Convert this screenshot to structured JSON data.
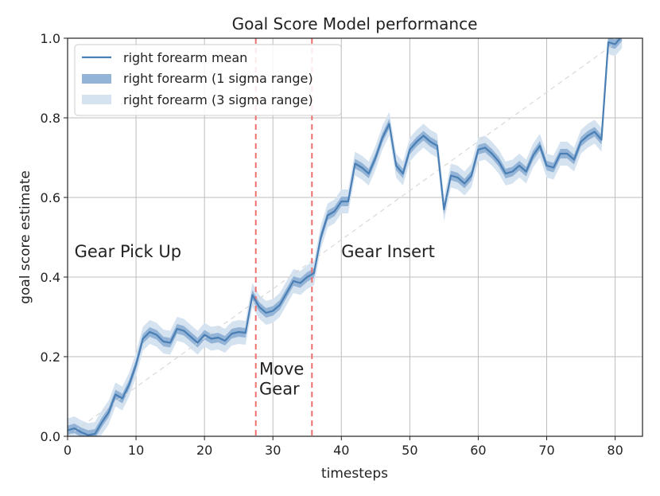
{
  "chart_data": {
    "type": "line",
    "title": "Goal Score Model performance",
    "xlabel": "timesteps",
    "ylabel": "goal score estimate",
    "xlim": [
      0,
      84
    ],
    "ylim": [
      0,
      1.0
    ],
    "grid": true,
    "legend_position": "top-left",
    "x_ticks": [
      0,
      10,
      20,
      30,
      40,
      50,
      60,
      70,
      80
    ],
    "y_ticks": [
      0.0,
      0.2,
      0.4,
      0.6,
      0.8,
      1.0
    ],
    "x_tick_labels": [
      "0",
      "10",
      "20",
      "30",
      "40",
      "50",
      "60",
      "70",
      "80"
    ],
    "y_tick_labels": [
      "0.0",
      "0.2",
      "0.4",
      "0.6",
      "0.8",
      "1.0"
    ],
    "legend": {
      "mean": "right forearm mean",
      "sigma1": "right forearm (1 sigma range)",
      "sigma3": "right forearm (3 sigma range)"
    },
    "colors": {
      "mean": "#4a7fb5",
      "sigma1": "#93b4d7",
      "sigma3": "#d5e2f0",
      "reference": "#d8d8d8",
      "phase_line": "#f07070",
      "grid": "#bdbdbd"
    },
    "series": [
      {
        "name": "right forearm mean",
        "x": [
          0,
          1,
          2,
          3,
          4,
          5,
          6,
          7,
          8,
          9,
          10,
          11,
          12,
          13,
          14,
          15,
          16,
          17,
          18,
          19,
          20,
          21,
          22,
          23,
          24,
          25,
          26,
          27,
          28,
          29,
          30,
          31,
          32,
          33,
          34,
          35,
          36,
          37,
          38,
          39,
          40,
          41,
          42,
          43,
          44,
          45,
          46,
          47,
          48,
          49,
          50,
          51,
          52,
          53,
          54,
          55,
          56,
          57,
          58,
          59,
          60,
          61,
          62,
          63,
          64,
          65,
          66,
          67,
          68,
          69,
          70,
          71,
          72,
          73,
          74,
          75,
          76,
          77,
          78,
          79,
          80,
          81
        ],
        "values": [
          0.015,
          0.02,
          0.01,
          0.003,
          0.006,
          0.035,
          0.06,
          0.105,
          0.095,
          0.13,
          0.18,
          0.245,
          0.262,
          0.255,
          0.238,
          0.235,
          0.27,
          0.265,
          0.25,
          0.235,
          0.255,
          0.245,
          0.248,
          0.24,
          0.258,
          0.262,
          0.26,
          0.355,
          0.325,
          0.31,
          0.315,
          0.33,
          0.36,
          0.39,
          0.385,
          0.4,
          0.41,
          0.5,
          0.555,
          0.565,
          0.59,
          0.59,
          0.685,
          0.675,
          0.66,
          0.7,
          0.75,
          0.785,
          0.68,
          0.66,
          0.72,
          0.74,
          0.755,
          0.74,
          0.73,
          0.57,
          0.655,
          0.65,
          0.635,
          0.655,
          0.72,
          0.725,
          0.71,
          0.69,
          0.66,
          0.665,
          0.68,
          0.665,
          0.705,
          0.73,
          0.68,
          0.675,
          0.71,
          0.71,
          0.695,
          0.74,
          0.755,
          0.765,
          0.745,
          0.99,
          0.985,
          1.005
        ]
      }
    ],
    "sigma1_halfwidth": 0.012,
    "sigma3_halfwidth": 0.03,
    "reference_line": {
      "x": [
        0,
        81
      ],
      "y": [
        0.0,
        1.0
      ]
    },
    "phase_markers": [
      27.5,
      35.7
    ],
    "annotations": [
      {
        "text": "Gear Pick Up",
        "x": 1.0,
        "y": 0.45
      },
      {
        "text": "Move",
        "x": 28.0,
        "y": 0.155
      },
      {
        "text": "Gear",
        "x": 28.0,
        "y": 0.105
      },
      {
        "text": "Gear Insert",
        "x": 40.0,
        "y": 0.45
      }
    ]
  }
}
